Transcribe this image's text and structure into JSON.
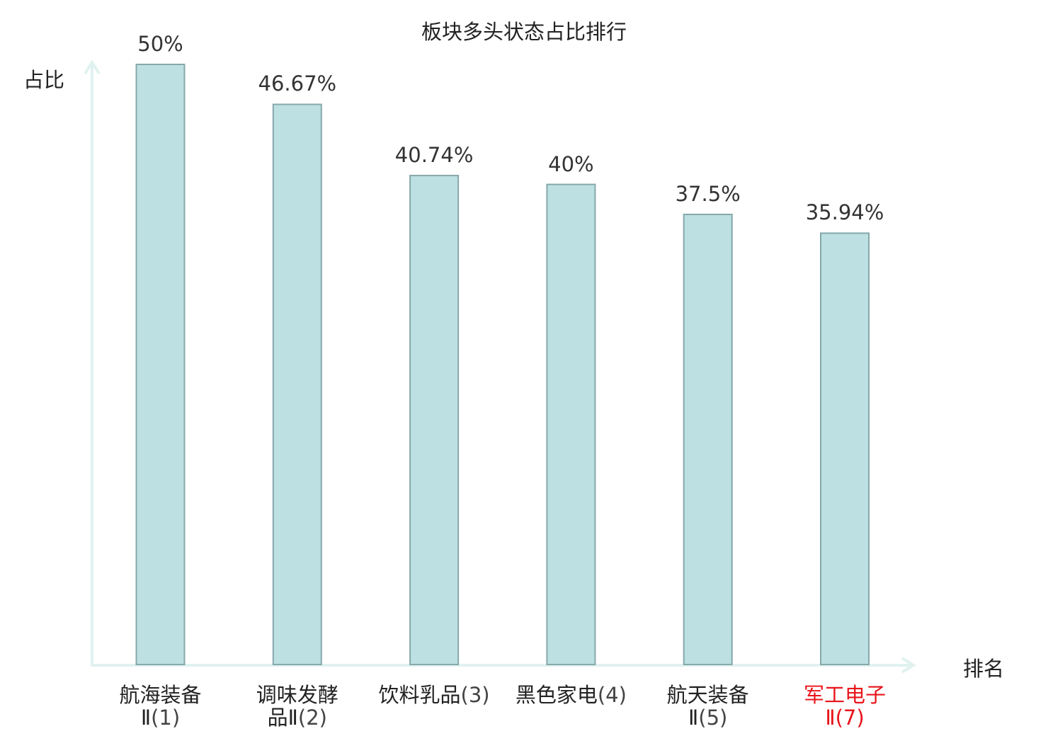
{
  "chart_data": {
    "type": "bar",
    "title": "板块多头状态占比排行",
    "ylabel": "占比",
    "xlabel": "排名",
    "ylim": [
      0,
      50
    ],
    "grid": false,
    "legend": "none",
    "categories": [
      {
        "name_lines": [
          "航海装备",
          "Ⅱ"
        ],
        "rank": "(1)",
        "highlight": false
      },
      {
        "name_lines": [
          "调味发酵",
          "品Ⅱ"
        ],
        "rank": "(2)",
        "highlight": false
      },
      {
        "name_lines": [
          "饮料乳品"
        ],
        "rank": "(3)",
        "highlight": false
      },
      {
        "name_lines": [
          "黑色家电"
        ],
        "rank": "(4)",
        "highlight": false
      },
      {
        "name_lines": [
          "航天装备",
          "Ⅱ"
        ],
        "rank": "(5)",
        "highlight": false
      },
      {
        "name_lines": [
          "军工电子",
          "Ⅱ"
        ],
        "rank": "(7)",
        "highlight": true
      }
    ],
    "values": [
      50,
      46.67,
      40.74,
      40,
      37.5,
      35.94
    ],
    "value_labels": [
      "50%",
      "46.67%",
      "40.74%",
      "40%",
      "37.5%",
      "35.94%"
    ]
  },
  "colors": {
    "bar_fill": "#bde0e3",
    "bar_stroke": "#86a8ab",
    "axis": "#e0f2ef",
    "highlight_text": "#e8141b",
    "text": "#222222"
  }
}
